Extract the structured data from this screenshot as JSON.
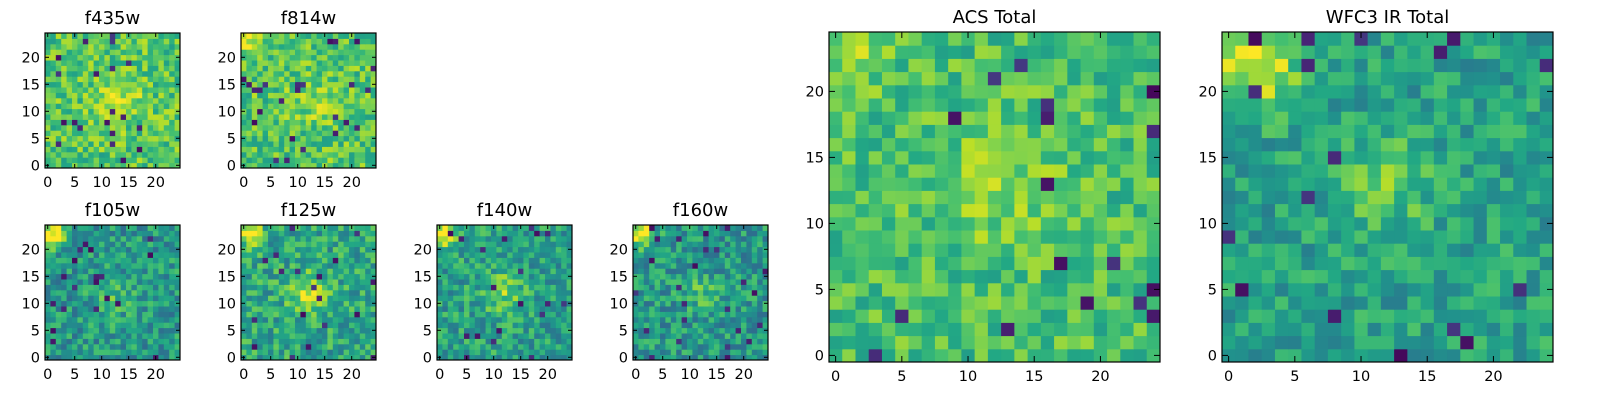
{
  "figure": {
    "colormap": "viridis",
    "colormap_stops": [
      "#440154",
      "#482475",
      "#414487",
      "#355f8d",
      "#2a788e",
      "#21918c",
      "#22a884",
      "#44bf70",
      "#7ad151",
      "#bddf26",
      "#fde725"
    ]
  },
  "chart_data": [
    {
      "type": "heatmap",
      "id": "f435w",
      "title": "f435w",
      "grid_size": 25,
      "xlim": [
        0,
        24
      ],
      "ylim": [
        0,
        24
      ],
      "xticks": [
        0,
        5,
        10,
        15,
        20
      ],
      "yticks": [
        0,
        5,
        10,
        15,
        20
      ],
      "xtick_labels": [
        "0",
        "5",
        "10",
        "15",
        "20"
      ],
      "ytick_labels": [
        "0",
        "5",
        "10",
        "15",
        "20"
      ],
      "value_range": [
        0.55,
        0.9
      ],
      "seed": 11,
      "features": [
        {
          "x": 13,
          "y": 12,
          "sigma": 3,
          "amplitude": 0.18
        }
      ]
    },
    {
      "type": "heatmap",
      "id": "f814w",
      "title": "f814w",
      "grid_size": 25,
      "xlim": [
        0,
        24
      ],
      "ylim": [
        0,
        24
      ],
      "xticks": [
        0,
        5,
        10,
        15,
        20
      ],
      "yticks": [
        0,
        5,
        10,
        15,
        20
      ],
      "xtick_labels": [
        "0",
        "5",
        "10",
        "15",
        "20"
      ],
      "ytick_labels": [
        "0",
        "5",
        "10",
        "15",
        "20"
      ],
      "value_range": [
        0.55,
        0.9
      ],
      "seed": 23,
      "features": [
        {
          "x": 13,
          "y": 12,
          "sigma": 3,
          "amplitude": 0.12
        },
        {
          "x": 1,
          "y": 23,
          "sigma": 1.5,
          "amplitude": 0.25
        }
      ]
    },
    {
      "type": "heatmap",
      "id": "f105w",
      "title": "f105w",
      "grid_size": 25,
      "xlim": [
        0,
        24
      ],
      "ylim": [
        0,
        24
      ],
      "xticks": [
        0,
        5,
        10,
        15,
        20
      ],
      "yticks": [
        0,
        5,
        10,
        15,
        20
      ],
      "xtick_labels": [
        "0",
        "5",
        "10",
        "15",
        "20"
      ],
      "ytick_labels": [
        "0",
        "5",
        "10",
        "15",
        "20"
      ],
      "value_range": [
        0.35,
        0.72
      ],
      "seed": 37,
      "features": [
        {
          "x": 1,
          "y": 23,
          "sigma": 1.6,
          "amplitude": 0.55
        },
        {
          "x": 12,
          "y": 11,
          "sigma": 2.5,
          "amplitude": 0.15
        }
      ]
    },
    {
      "type": "heatmap",
      "id": "f125w",
      "title": "f125w",
      "grid_size": 25,
      "xlim": [
        0,
        24
      ],
      "ylim": [
        0,
        24
      ],
      "xticks": [
        0,
        5,
        10,
        15,
        20
      ],
      "yticks": [
        0,
        5,
        10,
        15,
        20
      ],
      "xtick_labels": [
        "0",
        "5",
        "10",
        "15",
        "20"
      ],
      "ytick_labels": [
        "0",
        "5",
        "10",
        "15",
        "20"
      ],
      "value_range": [
        0.4,
        0.78
      ],
      "seed": 41,
      "features": [
        {
          "x": 1,
          "y": 23,
          "sigma": 1.6,
          "amplitude": 0.45
        },
        {
          "x": 12,
          "y": 12,
          "sigma": 2.5,
          "amplitude": 0.3
        }
      ]
    },
    {
      "type": "heatmap",
      "id": "f140w",
      "title": "f140w",
      "grid_size": 25,
      "xlim": [
        0,
        24
      ],
      "ylim": [
        0,
        24
      ],
      "xticks": [
        0,
        5,
        10,
        15,
        20
      ],
      "yticks": [
        0,
        5,
        10,
        15,
        20
      ],
      "xtick_labels": [
        "0",
        "5",
        "10",
        "15",
        "20"
      ],
      "ytick_labels": [
        "0",
        "5",
        "10",
        "15",
        "20"
      ],
      "value_range": [
        0.38,
        0.75
      ],
      "seed": 53,
      "features": [
        {
          "x": 1,
          "y": 23,
          "sigma": 1.6,
          "amplitude": 0.5
        },
        {
          "x": 12,
          "y": 12,
          "sigma": 2.8,
          "amplitude": 0.22
        }
      ]
    },
    {
      "type": "heatmap",
      "id": "f160w",
      "title": "f160w",
      "grid_size": 25,
      "xlim": [
        0,
        24
      ],
      "ylim": [
        0,
        24
      ],
      "xticks": [
        0,
        5,
        10,
        15,
        20
      ],
      "yticks": [
        0,
        5,
        10,
        15,
        20
      ],
      "xtick_labels": [
        "0",
        "5",
        "10",
        "15",
        "20"
      ],
      "ytick_labels": [
        "0",
        "5",
        "10",
        "15",
        "20"
      ],
      "value_range": [
        0.35,
        0.72
      ],
      "seed": 67,
      "features": [
        {
          "x": 1,
          "y": 23,
          "sigma": 1.6,
          "amplitude": 0.55
        },
        {
          "x": 12,
          "y": 12,
          "sigma": 2.5,
          "amplitude": 0.15
        }
      ]
    },
    {
      "type": "heatmap",
      "id": "acs-total",
      "title": "ACS Total",
      "grid_size": 25,
      "xlim": [
        0,
        24
      ],
      "ylim": [
        0,
        24
      ],
      "xticks": [
        0,
        5,
        10,
        15,
        20
      ],
      "yticks": [
        0,
        5,
        10,
        15,
        20
      ],
      "xtick_labels": [
        "0",
        "5",
        "10",
        "15",
        "20"
      ],
      "ytick_labels": [
        "0",
        "5",
        "10",
        "15",
        "20"
      ],
      "value_range": [
        0.55,
        0.85
      ],
      "seed": 79,
      "features": [
        {
          "x": 12,
          "y": 13,
          "sigma": 3,
          "amplitude": 0.15
        },
        {
          "x": 1,
          "y": 23,
          "sigma": 2,
          "amplitude": 0.15
        }
      ]
    },
    {
      "type": "heatmap",
      "id": "wfc3-ir-total",
      "title": "WFC3 IR Total",
      "grid_size": 25,
      "xlim": [
        0,
        24
      ],
      "ylim": [
        0,
        24
      ],
      "xticks": [
        0,
        5,
        10,
        15,
        20
      ],
      "yticks": [
        0,
        5,
        10,
        15,
        20
      ],
      "xtick_labels": [
        "0",
        "5",
        "10",
        "15",
        "20"
      ],
      "ytick_labels": [
        "0",
        "5",
        "10",
        "15",
        "20"
      ],
      "value_range": [
        0.42,
        0.72
      ],
      "seed": 97,
      "features": [
        {
          "x": 2,
          "y": 22,
          "sigma": 2.2,
          "amplitude": 0.4
        },
        {
          "x": 12,
          "y": 13,
          "sigma": 2.5,
          "amplitude": 0.2
        }
      ]
    }
  ]
}
